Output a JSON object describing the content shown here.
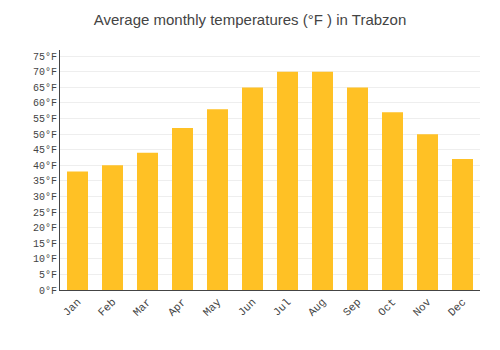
{
  "chart_data": {
    "type": "bar",
    "title": "Average monthly temperatures (°F ) in Trabzon",
    "categories": [
      "Jan",
      "Feb",
      "Mar",
      "Apr",
      "May",
      "Jun",
      "Jul",
      "Aug",
      "Sep",
      "Oct",
      "Nov",
      "Dec"
    ],
    "values": [
      38,
      40,
      44,
      52,
      58,
      65,
      70,
      70,
      65,
      57,
      50,
      42
    ],
    "color": "#FFC125",
    "ylim": [
      0,
      77
    ],
    "yticks": [
      {
        "value": 0,
        "label": "0°F"
      },
      {
        "value": 5,
        "label": "5°F"
      },
      {
        "value": 10,
        "label": "10°F"
      },
      {
        "value": 15,
        "label": "15°F"
      },
      {
        "value": 20,
        "label": "20°F"
      },
      {
        "value": 25,
        "label": "25°F"
      },
      {
        "value": 30,
        "label": "30°F"
      },
      {
        "value": 35,
        "label": "35°F"
      },
      {
        "value": 40,
        "label": "40°F"
      },
      {
        "value": 45,
        "label": "45°F"
      },
      {
        "value": 50,
        "label": "50°F"
      },
      {
        "value": 55,
        "label": "55°F"
      },
      {
        "value": 60,
        "label": "60°F"
      },
      {
        "value": 65,
        "label": "65°F"
      },
      {
        "value": 70,
        "label": "70°F"
      },
      {
        "value": 75,
        "label": "75°F"
      }
    ],
    "grid": true
  }
}
